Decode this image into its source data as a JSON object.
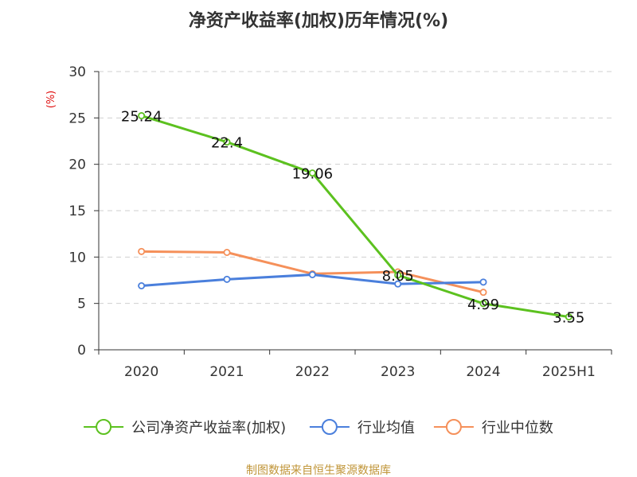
{
  "chart_data": {
    "type": "line",
    "title": "净资产收益率(加权)历年情况(%)",
    "unit": "(%)",
    "categories": [
      "2020",
      "2021",
      "2022",
      "2023",
      "2024",
      "2025H1"
    ],
    "ylim": [
      0,
      30
    ],
    "yticks": [
      0,
      5,
      10,
      15,
      20,
      25,
      30
    ],
    "grid": true,
    "legend_position": "bottom",
    "series": [
      {
        "name": "公司净资产收益率(加权)",
        "color": "#5cc11f",
        "values": [
          25.24,
          22.4,
          19.06,
          8.05,
          4.99,
          3.55
        ],
        "labels": [
          "25.24",
          "22.4",
          "19.06",
          "8.05",
          "4.99",
          "3.55"
        ]
      },
      {
        "name": "行业均值",
        "color": "#4a7fdc",
        "values": [
          6.9,
          7.6,
          8.1,
          7.1,
          7.3,
          null
        ]
      },
      {
        "name": "行业中位数",
        "color": "#f5905a",
        "values": [
          10.6,
          10.5,
          8.2,
          8.4,
          6.2,
          null
        ]
      }
    ],
    "source": "制图数据来自恒生聚源数据库"
  }
}
